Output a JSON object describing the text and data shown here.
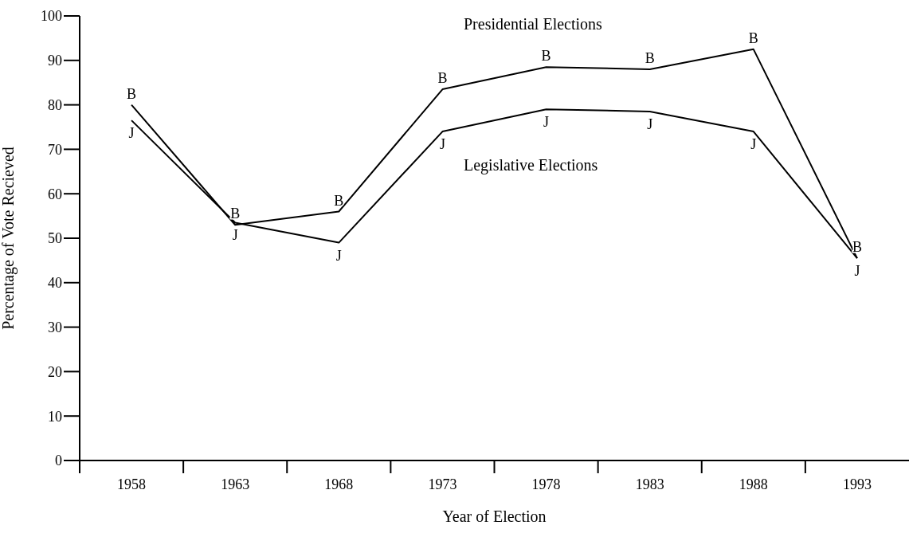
{
  "chart_data": {
    "type": "line",
    "xlabel": "Year of Election",
    "ylabel": "Percentage of Vote Recieved",
    "categories": [
      "1958",
      "1963",
      "1968",
      "1973",
      "1978",
      "1983",
      "1988",
      "1993"
    ],
    "series": [
      {
        "name": "B",
        "color": "#000000",
        "values": [
          80,
          53,
          56,
          83.5,
          88.5,
          88,
          92.5,
          45.5
        ]
      },
      {
        "name": "J",
        "color": "#000000",
        "values": [
          76.5,
          53.5,
          49,
          74,
          79,
          78.5,
          74,
          45.5
        ]
      }
    ],
    "annotations": [
      "Presidential Elections",
      "Legislative Elections"
    ],
    "ylim": [
      0,
      100
    ],
    "yticks": [
      0,
      10,
      20,
      30,
      40,
      50,
      60,
      70,
      80,
      90,
      100
    ],
    "grid": false,
    "legend": false
  }
}
